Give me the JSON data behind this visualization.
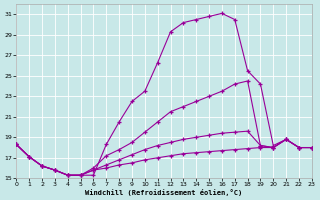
{
  "xlabel": "Windchill (Refroidissement éolien,°C)",
  "background_color": "#c8e8e8",
  "line_color": "#990099",
  "xlim": [
    0,
    23
  ],
  "ylim": [
    15,
    32
  ],
  "yticks": [
    15,
    17,
    19,
    21,
    23,
    25,
    27,
    29,
    31
  ],
  "xticks": [
    0,
    1,
    2,
    3,
    4,
    5,
    6,
    7,
    8,
    9,
    10,
    11,
    12,
    13,
    14,
    15,
    16,
    17,
    18,
    19,
    20,
    21,
    22,
    23
  ],
  "curves": [
    {
      "x": [
        0,
        1,
        2,
        3,
        4,
        5,
        6,
        7,
        8,
        9,
        10,
        11,
        12,
        13,
        14,
        15,
        16,
        17,
        18,
        19,
        20,
        21,
        22,
        23
      ],
      "y": [
        18.3,
        17.1,
        16.2,
        15.8,
        15.3,
        15.3,
        15.3,
        18.3,
        20.5,
        22.5,
        23.5,
        26.3,
        29.3,
        30.2,
        30.5,
        30.8,
        31.1,
        30.5,
        25.5,
        24.2,
        18.2,
        18.8,
        18.0,
        18.0
      ]
    },
    {
      "x": [
        0,
        1,
        2,
        3,
        4,
        5,
        6,
        7,
        8,
        9,
        10,
        11,
        12,
        13,
        14,
        15,
        16,
        17,
        18,
        19,
        20,
        21,
        22,
        23
      ],
      "y": [
        18.3,
        17.1,
        16.2,
        15.8,
        15.3,
        15.3,
        16.0,
        17.2,
        17.8,
        18.5,
        19.5,
        20.5,
        21.5,
        22.0,
        22.5,
        23.0,
        23.5,
        24.2,
        24.5,
        18.2,
        18.0,
        18.8,
        18.0,
        18.0
      ]
    },
    {
      "x": [
        0,
        1,
        2,
        3,
        4,
        5,
        6,
        7,
        8,
        9,
        10,
        11,
        12,
        13,
        14,
        15,
        16,
        17,
        18,
        19,
        20,
        21,
        22,
        23
      ],
      "y": [
        18.3,
        17.1,
        16.2,
        15.8,
        15.3,
        15.3,
        15.8,
        16.3,
        16.8,
        17.3,
        17.8,
        18.2,
        18.5,
        18.8,
        19.0,
        19.2,
        19.4,
        19.5,
        19.6,
        18.2,
        18.0,
        18.8,
        18.0,
        18.0
      ]
    },
    {
      "x": [
        0,
        1,
        2,
        3,
        4,
        5,
        6,
        7,
        8,
        9,
        10,
        11,
        12,
        13,
        14,
        15,
        16,
        17,
        18,
        19,
        20,
        21,
        22,
        23
      ],
      "y": [
        18.3,
        17.1,
        16.2,
        15.8,
        15.3,
        15.3,
        15.8,
        16.0,
        16.3,
        16.5,
        16.8,
        17.0,
        17.2,
        17.4,
        17.5,
        17.6,
        17.7,
        17.8,
        17.9,
        18.0,
        18.0,
        18.8,
        18.0,
        18.0
      ]
    }
  ]
}
